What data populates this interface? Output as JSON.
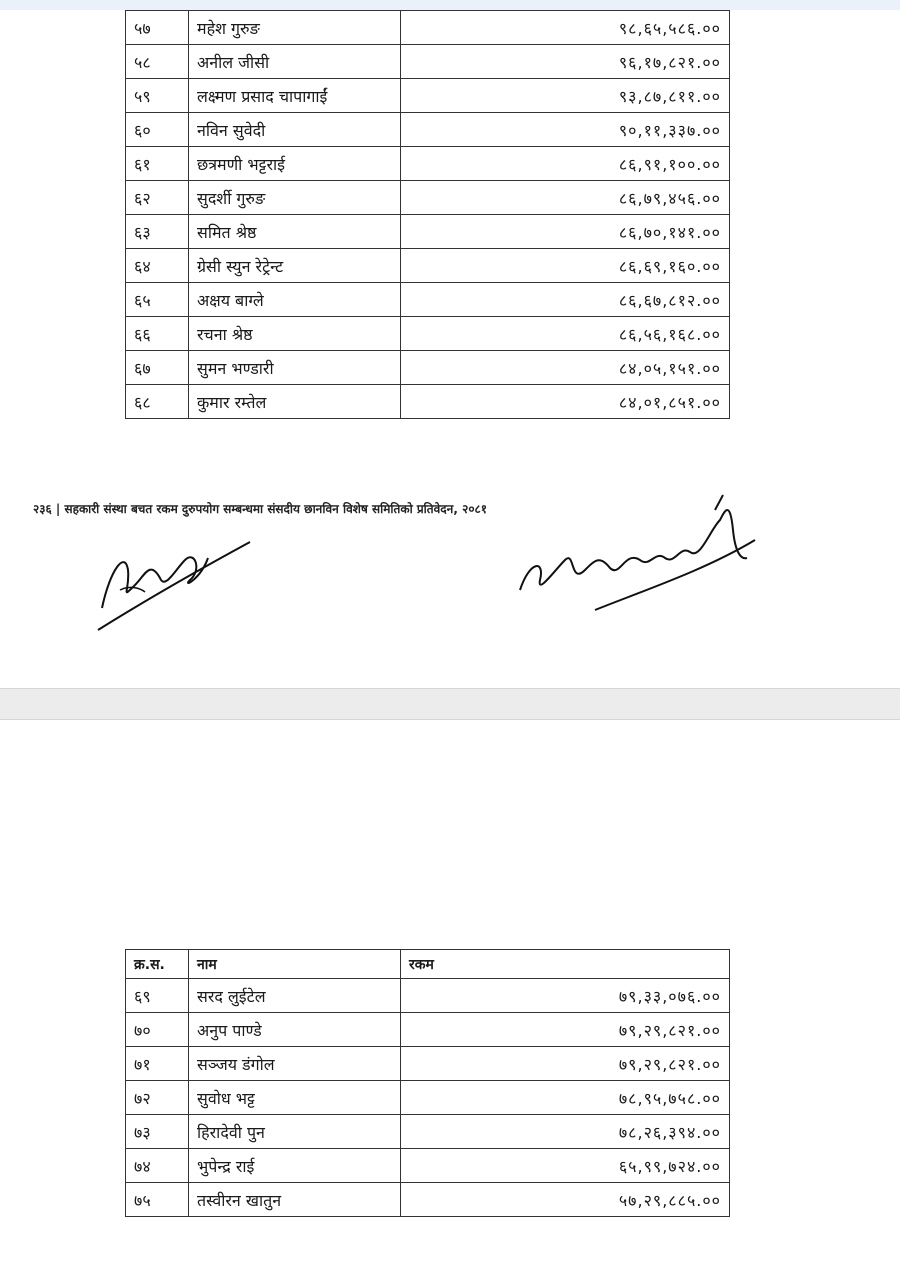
{
  "page1": {
    "rows": [
      {
        "sn": "५७",
        "name": "महेश गुरुङ",
        "amount": "९८,६५,५८६.००"
      },
      {
        "sn": "५८",
        "name": "अनील जीसी",
        "amount": "९६,१७,८२१.००"
      },
      {
        "sn": "५९",
        "name": "लक्ष्मण प्रसाद चापागाईं",
        "amount": "९३,८७,८११.००"
      },
      {
        "sn": "६०",
        "name": "नविन सुवेदी",
        "amount": "९०,११,३३७.००"
      },
      {
        "sn": "६१",
        "name": "छत्रमणी भट्टराई",
        "amount": "८६,९१,१००.००"
      },
      {
        "sn": "६२",
        "name": "सुदर्शी गुरुङ",
        "amount": "८६,७९,४५६.००"
      },
      {
        "sn": "६३",
        "name": "समित श्रेष्ठ",
        "amount": "८६,७०,१४१.००"
      },
      {
        "sn": "६४",
        "name": "ग्रेसी स्युन रेट्रेन्ट",
        "amount": "८६,६९,१६०.००"
      },
      {
        "sn": "६५",
        "name": "अक्षय बाग्ले",
        "amount": "८६,६७,८१२.००"
      },
      {
        "sn": "६६",
        "name": "रचना श्रेष्ठ",
        "amount": "८६,५६,१६८.००"
      },
      {
        "sn": "६७",
        "name": "सुमन भण्डारी",
        "amount": "८४,०५,१५१.००"
      },
      {
        "sn": "६८",
        "name": "कुमार रम्तेल",
        "amount": "८४,०१,८५१.००"
      }
    ],
    "footer": "२३६ | सहकारी संस्था बचत रकम दुरुपयोग सम्बन्धमा संसदीय छानविन विशेष समितिको प्रतिवेदन, २०८१"
  },
  "page2": {
    "headers": {
      "sn": "क्र.स.",
      "name": "नाम",
      "amount": "रकम"
    },
    "rows": [
      {
        "sn": "६९",
        "name": "सरद लुईटेल",
        "amount": "७९,३३,०७६.००"
      },
      {
        "sn": "७०",
        "name": "अनुप पाण्डे",
        "amount": "७९,२९,८२१.००"
      },
      {
        "sn": "७१",
        "name": "सञ्जय डंगोल",
        "amount": "७९,२९,८२१.००"
      },
      {
        "sn": "७२",
        "name": "सुवोध भट्ट",
        "amount": "७८,९५,७५८.००"
      },
      {
        "sn": "७३",
        "name": "हिरादेवी पुन",
        "amount": "७८,२६,३९४.००"
      },
      {
        "sn": "७४",
        "name": "भुपेन्द्र राई",
        "amount": "६५,९९,७२४.००"
      },
      {
        "sn": "७५",
        "name": "तस्वीरन खातुन",
        "amount": "५७,२९,८८५.००"
      }
    ]
  }
}
